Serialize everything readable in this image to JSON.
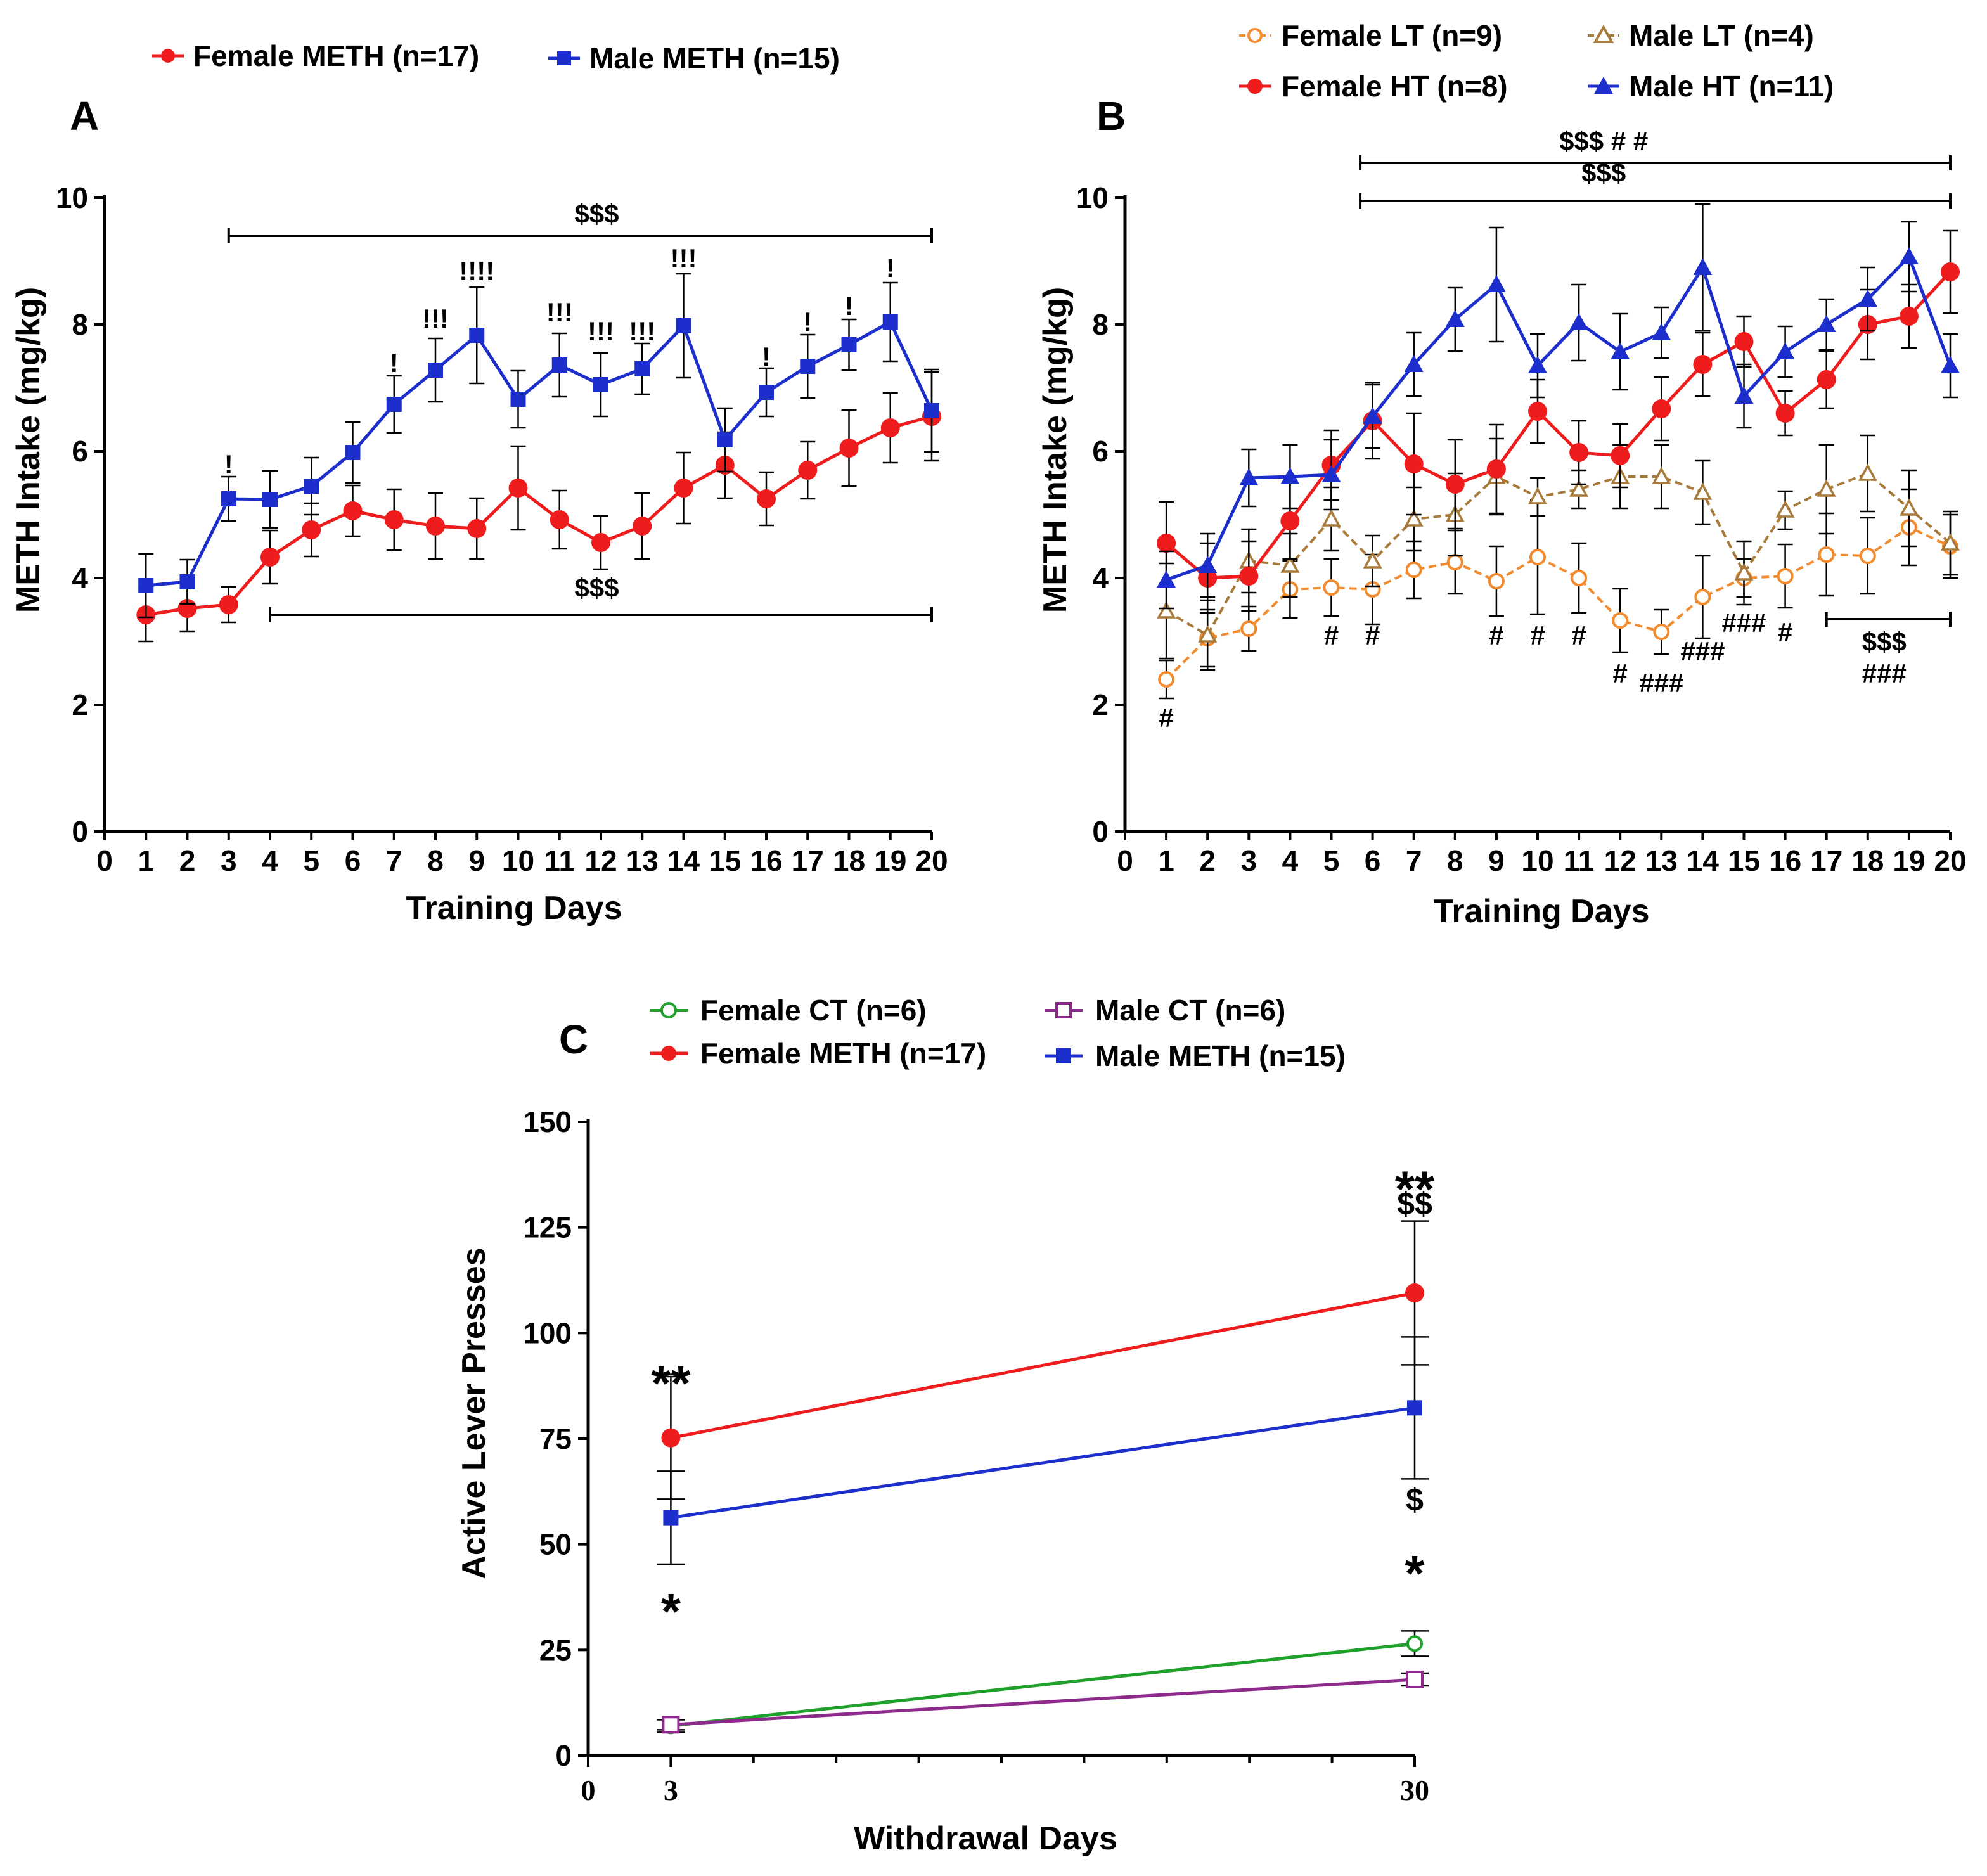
{
  "colors": {
    "female_meth": "#ee1c1c",
    "male_meth": "#1c2fcc",
    "female_lt": "#f28a2e",
    "male_lt": "#a87a3a",
    "female_ct": "#1fa02a",
    "male_ct": "#8e2a8c",
    "axis": "#000000"
  },
  "chart_data": [
    {
      "panel": "A",
      "type": "line",
      "xlabel": "Training Days",
      "ylabel": "METH Intake (mg/kg)",
      "xlim": [
        0,
        20
      ],
      "ylim": [
        0,
        10
      ],
      "xticks": [
        "0",
        "1",
        "2",
        "3",
        "4",
        "5",
        "6",
        "7",
        "8",
        "9",
        "10",
        "11",
        "12",
        "13",
        "14",
        "15",
        "16",
        "17",
        "18",
        "19",
        "20"
      ],
      "yticks": [
        "0",
        "2",
        "4",
        "6",
        "8",
        "10"
      ],
      "x": [
        1,
        2,
        3,
        4,
        5,
        6,
        7,
        8,
        9,
        10,
        11,
        12,
        13,
        14,
        15,
        16,
        17,
        18,
        19,
        20
      ],
      "series": [
        {
          "name": "Female METH (n=17)",
          "color_key": "female_meth",
          "marker": "circle-filled",
          "dashed": false,
          "values": [
            3.42,
            3.52,
            3.58,
            4.33,
            4.76,
            5.06,
            4.92,
            4.82,
            4.78,
            5.42,
            4.92,
            4.56,
            4.82,
            5.42,
            5.78,
            5.25,
            5.7,
            6.05,
            6.37,
            6.55
          ],
          "errors": [
            0.42,
            0.36,
            0.28,
            0.42,
            0.42,
            0.4,
            0.48,
            0.52,
            0.48,
            0.66,
            0.46,
            0.42,
            0.52,
            0.56,
            0.52,
            0.42,
            0.45,
            0.6,
            0.55,
            0.7
          ]
        },
        {
          "name": "Male METH (n=15)",
          "color_key": "male_meth",
          "marker": "square-filled",
          "dashed": false,
          "values": [
            3.88,
            3.94,
            5.25,
            5.24,
            5.45,
            5.98,
            6.74,
            7.28,
            7.83,
            6.82,
            7.36,
            7.05,
            7.3,
            7.98,
            6.18,
            6.93,
            7.34,
            7.68,
            8.04,
            6.64
          ],
          "errors": [
            0.5,
            0.35,
            0.35,
            0.45,
            0.45,
            0.48,
            0.45,
            0.5,
            0.76,
            0.45,
            0.5,
            0.5,
            0.4,
            0.82,
            0.5,
            0.38,
            0.5,
            0.4,
            0.62,
            0.65
          ]
        }
      ],
      "annotations": [
        {
          "text": "$$$",
          "x": 11.9,
          "y": 9.6
        },
        {
          "text": "$$$",
          "x": 11.9,
          "y": 3.7
        },
        {
          "text": "!",
          "x": 3,
          "y": 5.65
        },
        {
          "text": "!",
          "x": 7,
          "y": 7.25
        },
        {
          "text": "!!!",
          "x": 8,
          "y": 7.95
        },
        {
          "text": "!!!!",
          "x": 9,
          "y": 8.7
        },
        {
          "text": "!!!",
          "x": 11,
          "y": 8.05
        },
        {
          "text": "!!!",
          "x": 12,
          "y": 7.75
        },
        {
          "text": "!!!",
          "x": 13,
          "y": 7.75
        },
        {
          "text": "!!!",
          "x": 14,
          "y": 8.9
        },
        {
          "text": "!",
          "x": 16,
          "y": 7.35
        },
        {
          "text": "!",
          "x": 17,
          "y": 7.9
        },
        {
          "text": "!",
          "x": 18,
          "y": 8.15
        },
        {
          "text": "!",
          "x": 19,
          "y": 8.75
        }
      ],
      "brackets": [
        {
          "x_from": 3,
          "x_to": 20,
          "y": 9.4
        },
        {
          "x_from": 4,
          "x_to": 20,
          "y": 3.42
        }
      ],
      "legend": [
        "Female METH (n=17)",
        "Male METH (n=15)"
      ]
    },
    {
      "panel": "B",
      "type": "line",
      "xlabel": "Training Days",
      "ylabel": "METH Intake (mg/kg)",
      "xlim": [
        0,
        20
      ],
      "ylim": [
        0,
        10
      ],
      "xticks": [
        "0",
        "1",
        "2",
        "3",
        "4",
        "5",
        "6",
        "7",
        "8",
        "9",
        "10",
        "11",
        "12",
        "13",
        "14",
        "15",
        "16",
        "17",
        "18",
        "19",
        "20"
      ],
      "yticks": [
        "0",
        "2",
        "4",
        "6",
        "8",
        "10"
      ],
      "x": [
        1,
        2,
        3,
        4,
        5,
        6,
        7,
        8,
        9,
        10,
        11,
        12,
        13,
        14,
        15,
        16,
        17,
        18,
        19,
        20
      ],
      "series": [
        {
          "name": "Female LT (n=9)",
          "color_key": "female_lt",
          "marker": "circle-open",
          "dashed": true,
          "values": [
            2.4,
            3.05,
            3.2,
            3.82,
            3.85,
            3.82,
            4.13,
            4.25,
            3.95,
            4.33,
            4.0,
            3.33,
            3.15,
            3.7,
            4.0,
            4.03,
            4.37,
            4.35,
            4.8,
            4.5
          ],
          "errors": [
            0.3,
            0.45,
            0.35,
            0.45,
            0.45,
            0.55,
            0.45,
            0.5,
            0.55,
            0.9,
            0.55,
            0.5,
            0.35,
            0.65,
            0.3,
            0.5,
            0.65,
            0.6,
            0.6,
            0.5
          ]
        },
        {
          "name": "Male LT (n=4)",
          "color_key": "male_lt",
          "marker": "triangle-open",
          "dashed": true,
          "values": [
            3.48,
            3.1,
            4.27,
            4.2,
            4.93,
            4.27,
            4.93,
            5.0,
            5.6,
            5.28,
            5.4,
            5.6,
            5.6,
            5.35,
            4.08,
            5.07,
            5.4,
            5.65,
            5.1,
            4.55
          ],
          "errors": [
            0.75,
            0.55,
            0.5,
            0.5,
            0.5,
            0.4,
            0.5,
            0.65,
            0.6,
            0.3,
            0.3,
            0.5,
            0.5,
            0.5,
            0.5,
            0.3,
            0.7,
            0.6,
            0.6,
            0.5
          ]
        },
        {
          "name": "Female HT (n=8)",
          "color_key": "female_meth",
          "marker": "circle-filled",
          "dashed": false,
          "values": [
            4.55,
            4.0,
            4.03,
            4.9,
            5.78,
            6.48,
            5.8,
            5.48,
            5.72,
            6.63,
            5.98,
            5.93,
            6.67,
            7.37,
            7.73,
            6.6,
            7.13,
            8.0,
            8.13,
            8.83
          ],
          "errors": [
            0.65,
            0.55,
            0.55,
            0.6,
            0.55,
            0.6,
            0.8,
            0.7,
            0.7,
            0.5,
            0.5,
            0.5,
            0.5,
            0.5,
            0.4,
            0.35,
            0.45,
            0.55,
            0.5,
            0.65
          ]
        },
        {
          "name": "Male HT (n=11)",
          "color_key": "male_meth",
          "marker": "triangle-filled",
          "dashed": false,
          "values": [
            3.97,
            4.2,
            5.58,
            5.6,
            5.63,
            6.55,
            7.37,
            8.08,
            8.63,
            7.35,
            8.03,
            7.57,
            7.87,
            8.9,
            6.87,
            7.57,
            8.0,
            8.4,
            9.07,
            7.35
          ],
          "errors": [
            0.45,
            0.5,
            0.45,
            0.5,
            0.55,
            0.5,
            0.5,
            0.5,
            0.9,
            0.5,
            0.6,
            0.6,
            0.4,
            1.0,
            0.5,
            0.4,
            0.4,
            0.5,
            0.55,
            0.5
          ]
        }
      ],
      "annotations": [
        {
          "text": "$$$    # #",
          "x": 11.6,
          "y": 10.75
        },
        {
          "text": "$$$",
          "x": 11.6,
          "y": 10.25
        },
        {
          "text": "#",
          "x": 1,
          "y": 1.65
        },
        {
          "text": "#",
          "x": 5,
          "y": 2.95
        },
        {
          "text": "#",
          "x": 6,
          "y": 2.95
        },
        {
          "text": "#",
          "x": 9,
          "y": 2.95
        },
        {
          "text": "#",
          "x": 10,
          "y": 2.95
        },
        {
          "text": "#",
          "x": 11,
          "y": 2.95
        },
        {
          "text": "#",
          "x": 12,
          "y": 2.35
        },
        {
          "text": "###",
          "x": 13,
          "y": 2.2
        },
        {
          "text": "###",
          "x": 14,
          "y": 2.7
        },
        {
          "text": "###",
          "x": 15,
          "y": 3.15
        },
        {
          "text": "#",
          "x": 16,
          "y": 3.0
        },
        {
          "text": "$$$",
          "x": 18.4,
          "y": 2.85
        },
        {
          "text": "###",
          "x": 18.4,
          "y": 2.35
        }
      ],
      "brackets": [
        {
          "x_from": 5.7,
          "x_to": 20,
          "y": 10.55
        },
        {
          "x_from": 5.7,
          "x_to": 20,
          "y": 9.95
        },
        {
          "x_from": 17,
          "x_to": 20,
          "y": 3.35
        }
      ],
      "legend": [
        "Female LT (n=9)",
        "Male LT (n=4)",
        "Female HT (n=8)",
        "Male HT (n=11)"
      ]
    },
    {
      "panel": "C",
      "type": "line",
      "xlabel": "Withdrawal Days",
      "ylabel": "Active Lever Presses",
      "xlim": [
        0,
        30
      ],
      "ylim": [
        0,
        150
      ],
      "xticks": [
        "0",
        "3",
        "30"
      ],
      "yticks": [
        "0",
        "25",
        "50",
        "75",
        "100",
        "125",
        "150"
      ],
      "x": [
        3,
        30
      ],
      "series": [
        {
          "name": "Female CT (n=6)",
          "color_key": "female_ct",
          "marker": "circle-open",
          "dashed": false,
          "values": [
            7,
            26.5
          ],
          "errors": [
            1.5,
            3
          ]
        },
        {
          "name": "Male CT (n=6)",
          "color_key": "male_ct",
          "marker": "square-open",
          "dashed": false,
          "values": [
            7.3,
            18
          ],
          "errors": [
            1.2,
            1.5
          ]
        },
        {
          "name": "Female METH (n=17)",
          "color_key": "female_meth",
          "marker": "circle-filled",
          "dashed": false,
          "values": [
            75.2,
            109.5
          ],
          "errors": [
            14.5,
            17
          ]
        },
        {
          "name": "Male METH (n=15)",
          "color_key": "male_meth",
          "marker": "square-filled",
          "dashed": false,
          "values": [
            56.3,
            82.3
          ],
          "errors": [
            11,
            16.8
          ]
        }
      ],
      "annotations": [
        {
          "text": "**",
          "x": 3,
          "y": 90
        },
        {
          "text": "*",
          "x": 3,
          "y": 36
        },
        {
          "text": "**",
          "x": 30,
          "y": 136
        },
        {
          "text": "$$",
          "x": 30,
          "y": 128
        },
        {
          "text": "$",
          "x": 30,
          "y": 58
        },
        {
          "text": "*",
          "x": 30,
          "y": 45
        }
      ],
      "legend": [
        "Female CT (n=6)",
        "Male CT (n=6)",
        "Female METH (n=17)",
        "Male METH (n=15)"
      ]
    }
  ]
}
